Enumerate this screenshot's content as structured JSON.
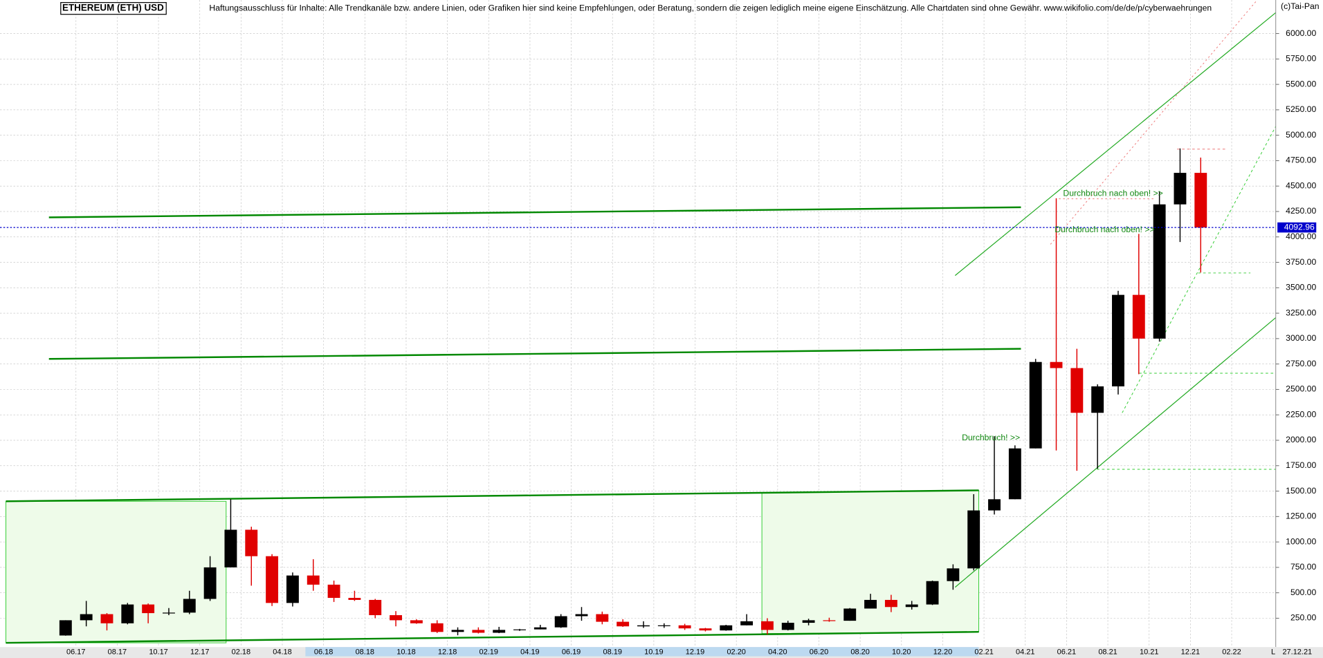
{
  "chart_data": {
    "type": "candlestick",
    "title": "ETHEREUM (ETH) USD",
    "subtitle": "Haftungsausschluss für Inhalte: Alle Trendkanäle bzw. andere Linien, oder Grafiken hier sind keine Empfehlungen, oder Beratung, sondern die zeigen lediglich meine eigene Einschätzung. Alle Chartdaten sind ohne Gewähr.  www.wikifolio.com/de/de/p/cyberwaehrungen",
    "source": "(c)Tai-Pan",
    "date_label": "27.12.21",
    "scale_label": "L",
    "annotations": [
      "Durchbruch nach oben! >>",
      "Durchbruch nach oben! >>",
      "Durchbruch! >>"
    ],
    "last_price": {
      "value": 4092.96,
      "label": "4092.96",
      "color": "#0000cc"
    },
    "up_color": "#000000",
    "down_color": "#e00000",
    "x": [
      "05.17",
      "06.17",
      "07.17",
      "08.17",
      "09.17",
      "10.17",
      "11.17",
      "12.17",
      "01.18",
      "02.18",
      "03.18",
      "04.18",
      "05.18",
      "06.18",
      "07.18",
      "08.18",
      "09.18",
      "10.18",
      "11.18",
      "12.18",
      "01.19",
      "02.19",
      "03.19",
      "04.19",
      "05.19",
      "06.19",
      "07.19",
      "08.19",
      "09.19",
      "10.19",
      "11.19",
      "12.19",
      "01.20",
      "02.20",
      "03.20",
      "04.20",
      "05.20",
      "06.20",
      "07.20",
      "08.20",
      "09.20",
      "10.20",
      "11.20",
      "12.20",
      "01.21",
      "02.21",
      "03.21",
      "04.21",
      "05.21",
      "06.21",
      "07.21",
      "08.21",
      "09.21",
      "10.21",
      "11.21",
      "12.21"
    ],
    "open": [
      80,
      230,
      290,
      200,
      385,
      300,
      305,
      440,
      750,
      1120,
      860,
      400,
      670,
      580,
      450,
      430,
      280,
      230,
      200,
      115,
      135,
      107,
      135,
      140,
      160,
      270,
      290,
      215,
      170,
      180,
      180,
      150,
      130,
      180,
      220,
      135,
      205,
      230,
      225,
      345,
      430,
      360,
      385,
      615,
      740,
      1310,
      1420,
      1920,
      2770,
      2710,
      2270,
      2530,
      3430,
      3000,
      4320,
      4630
    ],
    "high": [
      230,
      420,
      300,
      400,
      395,
      350,
      520,
      860,
      1420,
      1150,
      880,
      700,
      830,
      620,
      520,
      440,
      320,
      240,
      230,
      160,
      160,
      165,
      145,
      185,
      290,
      360,
      315,
      240,
      220,
      200,
      195,
      155,
      185,
      290,
      250,
      225,
      245,
      255,
      350,
      490,
      480,
      420,
      620,
      780,
      1470,
      2040,
      1950,
      2800,
      4380,
      2900,
      2550,
      3470,
      4030,
      4450,
      4870,
      4780
    ],
    "low": [
      78,
      170,
      130,
      190,
      200,
      280,
      290,
      420,
      750,
      570,
      370,
      365,
      520,
      410,
      420,
      250,
      170,
      195,
      105,
      82,
      100,
      103,
      125,
      140,
      155,
      225,
      190,
      165,
      155,
      155,
      135,
      120,
      127,
      180,
      90,
      130,
      180,
      215,
      225,
      345,
      310,
      335,
      380,
      530,
      720,
      1270,
      1420,
      1920,
      1900,
      1700,
      1720,
      2450,
      2650,
      2970,
      3950,
      3650
    ],
    "close": [
      230,
      290,
      200,
      385,
      300,
      305,
      440,
      750,
      1120,
      860,
      400,
      670,
      580,
      450,
      430,
      280,
      230,
      200,
      115,
      135,
      107,
      135,
      140,
      160,
      270,
      290,
      215,
      170,
      180,
      180,
      150,
      130,
      180,
      220,
      135,
      205,
      230,
      225,
      345,
      430,
      360,
      385,
      615,
      740,
      1310,
      1420,
      1920,
      2770,
      2710,
      2270,
      2530,
      3430,
      3000,
      4320,
      4630,
      4093
    ],
    "xticks": [
      "06.17",
      "08.17",
      "10.17",
      "12.17",
      "02.18",
      "04.18",
      "06.18",
      "08.18",
      "10.18",
      "12.18",
      "02.19",
      "04.19",
      "06.19",
      "08.19",
      "10.19",
      "12.19",
      "02.20",
      "04.20",
      "06.20",
      "08.20",
      "10.20",
      "12.20",
      "02.21",
      "04.21",
      "06.21",
      "08.21",
      "10.21",
      "12.21",
      "02.22"
    ],
    "ylim": [
      -17,
      6330
    ],
    "yticks": [
      {
        "value": 250,
        "label": "250.00"
      },
      {
        "value": 500,
        "label": "500.00"
      },
      {
        "value": 750,
        "label": "750.00"
      },
      {
        "value": 1000,
        "label": "1000.00"
      },
      {
        "value": 1250,
        "label": "1250.00"
      },
      {
        "value": 1500,
        "label": "1500.00"
      },
      {
        "value": 1750,
        "label": "1750.00"
      },
      {
        "value": 2000,
        "label": "2000.00"
      },
      {
        "value": 2250,
        "label": "2250.00"
      },
      {
        "value": 2500,
        "label": "2500.00"
      },
      {
        "value": 2750,
        "label": "2750.00"
      },
      {
        "value": 3000,
        "label": "3000.00"
      },
      {
        "value": 3250,
        "label": "3250.00"
      },
      {
        "value": 3500,
        "label": "3500.00"
      },
      {
        "value": 3750,
        "label": "3750.00"
      },
      {
        "value": 4000,
        "label": "4000.00"
      },
      {
        "value": 4250,
        "label": "4250.00"
      },
      {
        "value": 4500,
        "label": "4500.00"
      },
      {
        "value": 4750,
        "label": "4750.00"
      },
      {
        "value": 5000,
        "label": "5000.00"
      },
      {
        "value": 5250,
        "label": "5250.00"
      },
      {
        "value": 5500,
        "label": "5500.00"
      },
      {
        "value": 5750,
        "label": "5750.00"
      },
      {
        "value": 6000,
        "label": "6000.00"
      }
    ],
    "grid": true
  }
}
